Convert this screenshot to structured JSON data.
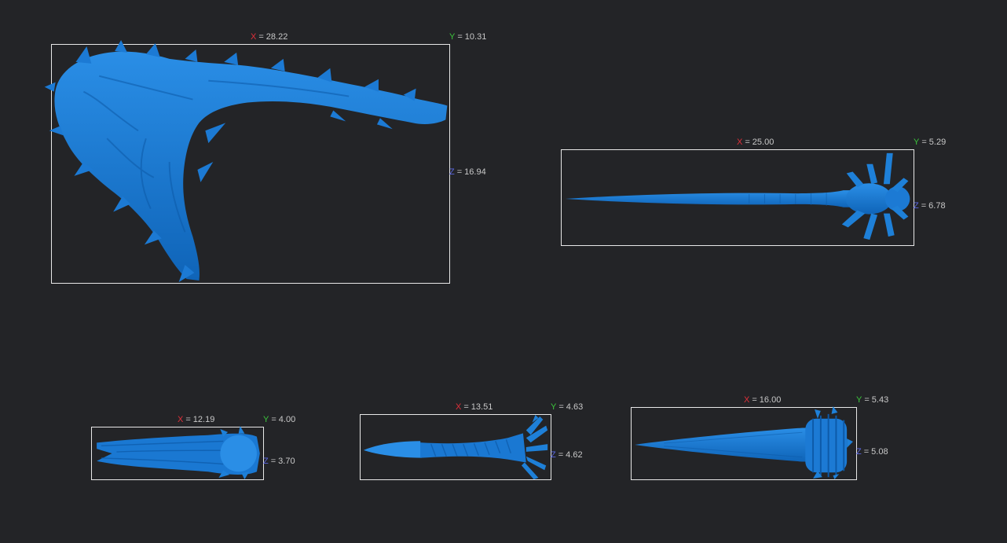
{
  "colors": {
    "background": "#232427",
    "model": "#1e7fd6",
    "model_shade": "#0d5aa8",
    "bbox": "#e8e8e8",
    "axis_x": "#e0303a",
    "axis_y": "#3cc43c",
    "axis_z": "#5a66e0",
    "label_text": "#c9c9c9"
  },
  "common": {
    "eq": "="
  },
  "models": [
    {
      "name": "curved-spiked-tail",
      "x_axis": "X",
      "x_value": "28.22",
      "y_axis": "Y",
      "y_value": "10.31",
      "z_axis": "Z",
      "z_value": "16.94"
    },
    {
      "name": "spike-with-flared-head",
      "x_axis": "X",
      "x_value": "25.00",
      "y_axis": "Y",
      "y_value": "5.29",
      "z_axis": "Z",
      "z_value": "6.78"
    },
    {
      "name": "twisted-tendril",
      "x_axis": "X",
      "x_value": "12.19",
      "y_axis": "Y",
      "y_value": "4.00",
      "z_axis": "Z",
      "z_value": "3.70"
    },
    {
      "name": "spiral-spike",
      "x_axis": "X",
      "x_value": "13.51",
      "y_axis": "Y",
      "y_value": "4.63",
      "z_axis": "Z",
      "z_value": "4.62"
    },
    {
      "name": "ribbed-cone-spike",
      "x_axis": "X",
      "x_value": "16.00",
      "y_axis": "Y",
      "y_value": "5.43",
      "z_axis": "Z",
      "z_value": "5.08"
    }
  ]
}
